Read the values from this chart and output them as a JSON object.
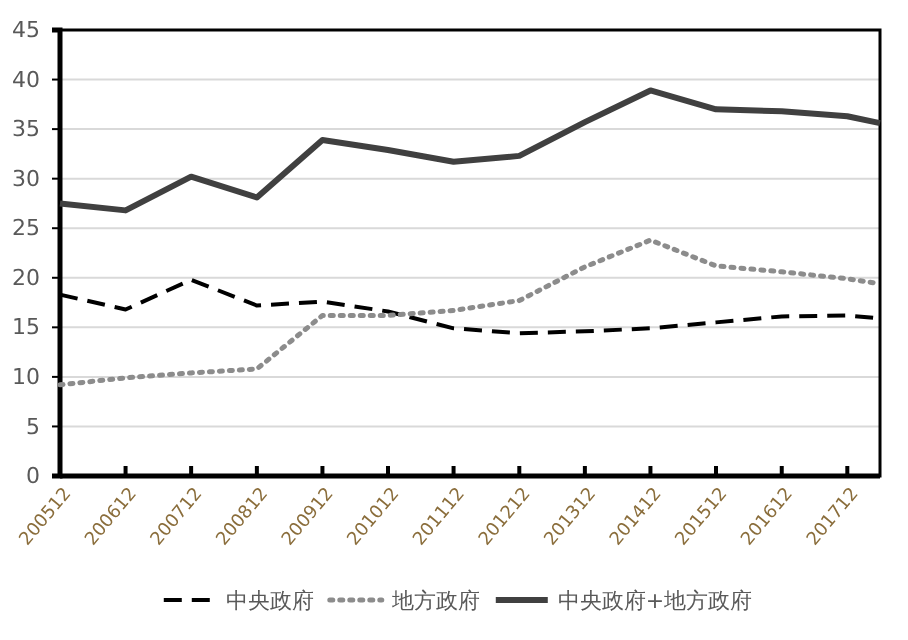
{
  "chart_data": {
    "type": "line",
    "x": [
      "2005-12",
      "2006-12",
      "2007-12",
      "2008-12",
      "2009-12",
      "2010-12",
      "2011-12",
      "2012-12",
      "2013-12",
      "2014-12",
      "2015-12",
      "2016-12",
      "2017-12",
      "2018-06"
    ],
    "xlim": [
      "2005-12",
      "2018-06"
    ],
    "xticks": [
      {
        "value": "2005-12",
        "label": "200512"
      },
      {
        "value": "2006-12",
        "label": "200612"
      },
      {
        "value": "2007-12",
        "label": "200712"
      },
      {
        "value": "2008-12",
        "label": "200812"
      },
      {
        "value": "2009-12",
        "label": "200912"
      },
      {
        "value": "2010-12",
        "label": "201012"
      },
      {
        "value": "2011-12",
        "label": "201112"
      },
      {
        "value": "2012-12",
        "label": "201212"
      },
      {
        "value": "2013-12",
        "label": "201312"
      },
      {
        "value": "2014-12",
        "label": "201412"
      },
      {
        "value": "2015-12",
        "label": "201512"
      },
      {
        "value": "2016-12",
        "label": "201612"
      },
      {
        "value": "2017-12",
        "label": "201712"
      }
    ],
    "ylim": [
      0,
      45
    ],
    "yticks": [
      0,
      5,
      10,
      15,
      20,
      25,
      30,
      35,
      40,
      45
    ],
    "grid": "y",
    "legend": "bottom",
    "series": [
      {
        "name": "中央政府",
        "color": "#000000",
        "line_style": "dashed",
        "values": [
          18.3,
          16.8,
          19.8,
          17.2,
          17.6,
          16.6,
          14.9,
          14.4,
          14.6,
          14.9,
          15.5,
          16.1,
          16.2,
          15.9
        ]
      },
      {
        "name": "地方政府",
        "color": "#8c8c8c",
        "line_style": "dotted",
        "values": [
          9.2,
          9.9,
          10.4,
          10.8,
          16.2,
          16.2,
          16.7,
          17.7,
          21.1,
          23.8,
          21.2,
          20.6,
          19.9,
          19.4
        ]
      },
      {
        "name": "中央政府+地方政府",
        "color": "#404040",
        "line_style": "solid",
        "values": [
          27.5,
          26.8,
          30.2,
          28.1,
          33.9,
          32.9,
          31.7,
          32.3,
          35.7,
          38.9,
          37.0,
          36.8,
          36.3,
          35.6
        ]
      }
    ]
  }
}
